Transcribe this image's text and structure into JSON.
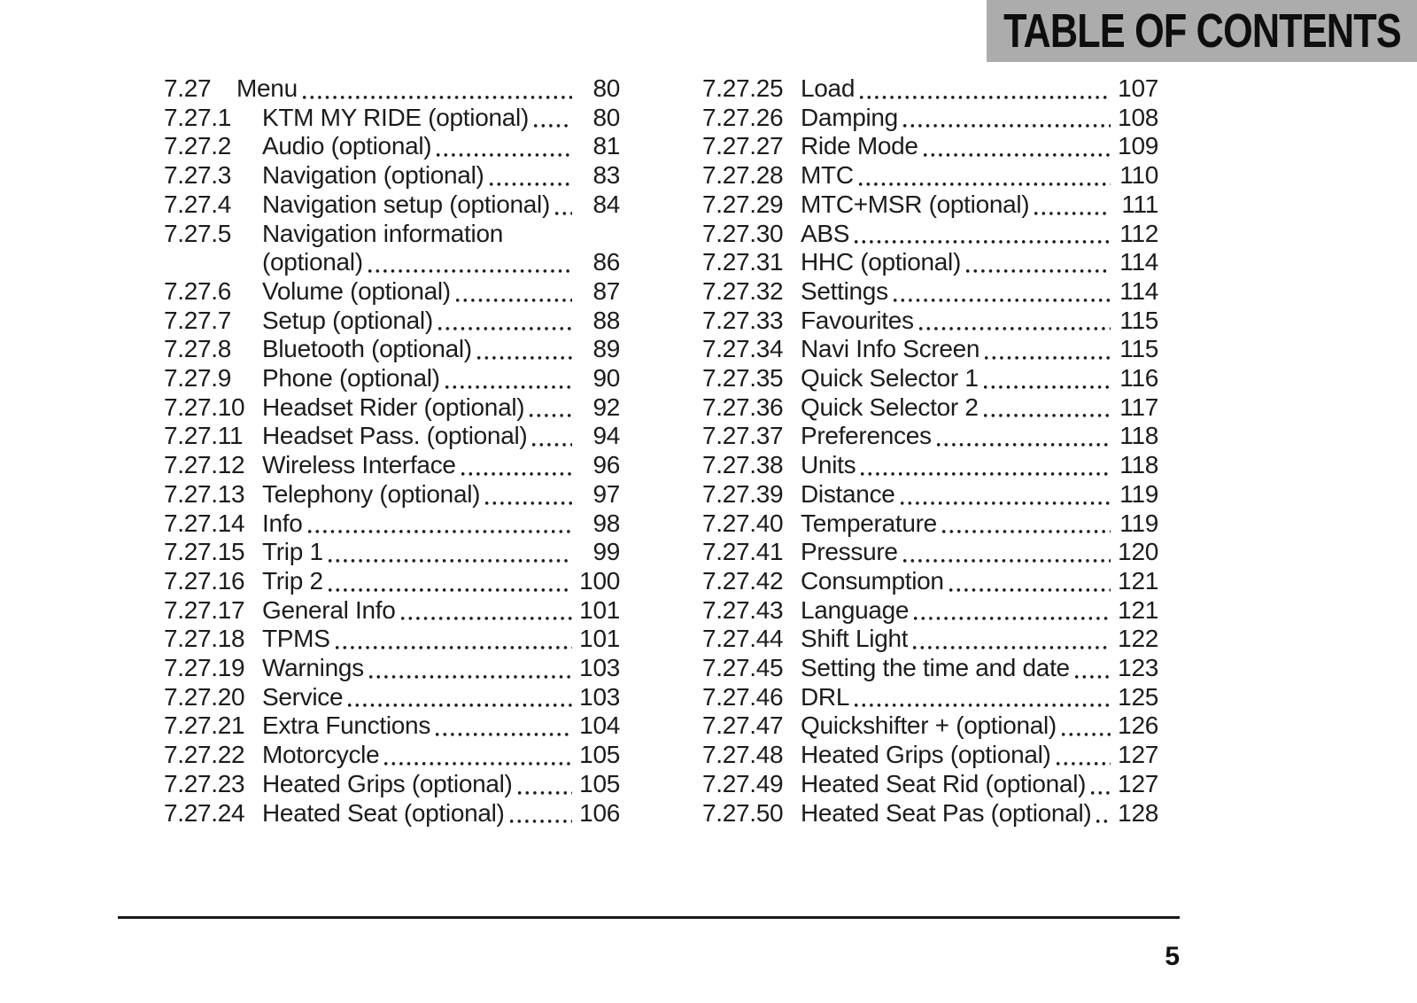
{
  "header": {
    "title": "TABLE OF CONTENTS"
  },
  "colors": {
    "header_band": "#acacac",
    "text": "#1c1c1c",
    "rule": "#1a1a1a"
  },
  "footer": {
    "page_number": "5"
  },
  "toc": {
    "left_column": [
      {
        "num": "7.27",
        "title": "Menu",
        "page": "80",
        "level": 1
      },
      {
        "num": "7.27.1",
        "title": "KTM MY RIDE (optional)",
        "page": "80"
      },
      {
        "num": "7.27.2",
        "title": "Audio (optional)",
        "page": "81"
      },
      {
        "num": "7.27.3",
        "title": "Navigation (optional)",
        "page": "83"
      },
      {
        "num": "7.27.4",
        "title": "Navigation setup (optional)",
        "page": "84"
      },
      {
        "num": "7.27.5",
        "title": "Navigation information",
        "title2": "(optional)",
        "page": "86"
      },
      {
        "num": "7.27.6",
        "title": "Volume (optional)",
        "page": "87"
      },
      {
        "num": "7.27.7",
        "title": "Setup (optional)",
        "page": "88"
      },
      {
        "num": "7.27.8",
        "title": "Bluetooth (optional)",
        "page": "89"
      },
      {
        "num": "7.27.9",
        "title": "Phone (optional)",
        "page": "90"
      },
      {
        "num": "7.27.10",
        "title": "Headset Rider (optional)",
        "page": "92"
      },
      {
        "num": "7.27.11",
        "title": "Headset Pass. (optional)",
        "page": "94"
      },
      {
        "num": "7.27.12",
        "title": "Wireless Interface",
        "page": "96"
      },
      {
        "num": "7.27.13",
        "title": "Telephony (optional)",
        "page": "97"
      },
      {
        "num": "7.27.14",
        "title": "Info",
        "page": "98"
      },
      {
        "num": "7.27.15",
        "title": "Trip 1",
        "page": "99"
      },
      {
        "num": "7.27.16",
        "title": "Trip 2",
        "page": "100"
      },
      {
        "num": "7.27.17",
        "title": "General Info",
        "page": "101"
      },
      {
        "num": "7.27.18",
        "title": "TPMS",
        "page": "101"
      },
      {
        "num": "7.27.19",
        "title": "Warnings",
        "page": "103"
      },
      {
        "num": "7.27.20",
        "title": "Service",
        "page": "103"
      },
      {
        "num": "7.27.21",
        "title": "Extra Functions",
        "page": "104"
      },
      {
        "num": "7.27.22",
        "title": "Motorcycle",
        "page": "105"
      },
      {
        "num": "7.27.23",
        "title": "Heated Grips (optional)",
        "page": "105"
      },
      {
        "num": "7.27.24",
        "title": "Heated Seat (optional)",
        "page": "106"
      }
    ],
    "right_column": [
      {
        "num": "7.27.25",
        "title": "Load",
        "page": "107"
      },
      {
        "num": "7.27.26",
        "title": "Damping",
        "page": "108"
      },
      {
        "num": "7.27.27",
        "title": "Ride Mode",
        "page": "109"
      },
      {
        "num": "7.27.28",
        "title": "MTC",
        "page": "110"
      },
      {
        "num": "7.27.29",
        "title": "MTC+MSR (optional)",
        "page": "111"
      },
      {
        "num": "7.27.30",
        "title": "ABS",
        "page": "112"
      },
      {
        "num": "7.27.31",
        "title": "HHC (optional)",
        "page": "114"
      },
      {
        "num": "7.27.32",
        "title": "Settings",
        "page": "114"
      },
      {
        "num": "7.27.33",
        "title": "Favourites",
        "page": "115"
      },
      {
        "num": "7.27.34",
        "title": "Navi Info Screen",
        "page": "115"
      },
      {
        "num": "7.27.35",
        "title": "Quick Selector 1",
        "page": "116"
      },
      {
        "num": "7.27.36",
        "title": "Quick Selector 2",
        "page": "117"
      },
      {
        "num": "7.27.37",
        "title": "Preferences",
        "page": "118"
      },
      {
        "num": "7.27.38",
        "title": "Units",
        "page": "118"
      },
      {
        "num": "7.27.39",
        "title": "Distance",
        "page": "119"
      },
      {
        "num": "7.27.40",
        "title": "Temperature",
        "page": "119"
      },
      {
        "num": "7.27.41",
        "title": "Pressure",
        "page": "120"
      },
      {
        "num": "7.27.42",
        "title": "Consumption",
        "page": "121"
      },
      {
        "num": "7.27.43",
        "title": "Language",
        "page": "121"
      },
      {
        "num": "7.27.44",
        "title": "Shift Light",
        "page": "122"
      },
      {
        "num": "7.27.45",
        "title": "Setting the time and date",
        "page": "123"
      },
      {
        "num": "7.27.46",
        "title": "DRL",
        "page": "125"
      },
      {
        "num": "7.27.47",
        "title": "Quickshifter + (optional)",
        "page": "126"
      },
      {
        "num": "7.27.48",
        "title": "Heated Grips (optional)",
        "page": "127"
      },
      {
        "num": "7.27.49",
        "title": "Heated Seat Rid (optional)",
        "page": "127"
      },
      {
        "num": "7.27.50",
        "title": "Heated Seat Pas (optional)",
        "page": "128"
      }
    ]
  }
}
